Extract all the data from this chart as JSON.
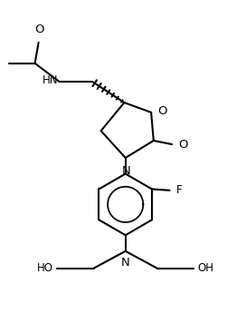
{
  "bg_color": "#ffffff",
  "line_color": "#000000",
  "line_width": 1.5,
  "font_size": 8.5,
  "figsize": [
    2.72,
    3.56
  ],
  "dpi": 100,
  "xlim": [
    0,
    10
  ],
  "ylim": [
    0,
    13
  ]
}
